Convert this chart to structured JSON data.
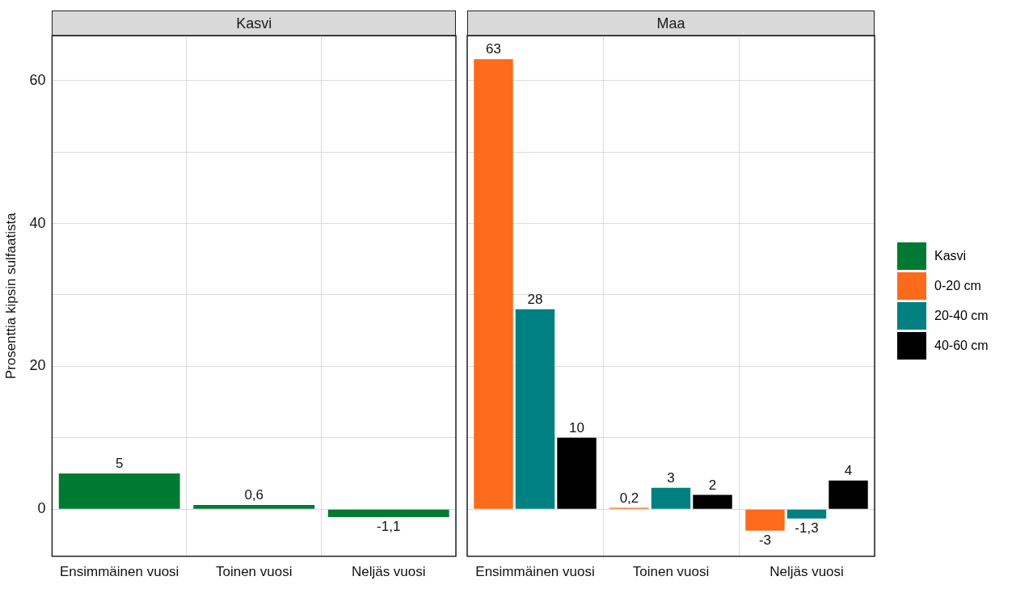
{
  "chart_data": [
    {
      "type": "bar",
      "title": "Kasvi",
      "ylabel": "Prosenttia kipsin sulfaatista",
      "categories": [
        "Ensimmäinen vuosi",
        "Toinen vuosi",
        "Neljäs vuosi"
      ],
      "series": [
        {
          "name": "Kasvi",
          "color": "#007a33",
          "values": [
            5,
            0.6,
            -1.1
          ],
          "value_labels": [
            "5",
            "0,6",
            "-1,1"
          ]
        }
      ],
      "ylim": [
        -6.6,
        66.3
      ],
      "yticks": [
        0,
        {
          "value": 10,
          "label": null
        },
        20,
        {
          "value": 30,
          "label": null
        },
        40,
        {
          "value": 50,
          "label": null
        },
        60
      ],
      "grid": true,
      "legend": "right"
    },
    {
      "type": "bar",
      "title": "Maa",
      "categories": [
        "Ensimmäinen vuosi",
        "Toinen vuosi",
        "Neljäs vuosi"
      ],
      "series": [
        {
          "name": "0-20 cm",
          "color": "#fc6a1c",
          "values": [
            63,
            0.2,
            -3
          ],
          "value_labels": [
            "63",
            "0,2",
            "-3"
          ]
        },
        {
          "name": "20-40 cm",
          "color": "#008080",
          "values": [
            28,
            3,
            -1.3
          ],
          "value_labels": [
            "28",
            "3",
            "-1,3"
          ]
        },
        {
          "name": "40-60 cm",
          "color": "#000000",
          "values": [
            10,
            2,
            4
          ],
          "value_labels": [
            "10",
            "2",
            "4"
          ]
        }
      ],
      "ylim": [
        -6.6,
        66.3
      ],
      "yticks": [
        0,
        {
          "value": 10,
          "label": null
        },
        20,
        {
          "value": 30,
          "label": null
        },
        40,
        {
          "value": 50,
          "label": null
        },
        60
      ],
      "grid": true,
      "legend": "right",
      "tick_labels": "x"
    }
  ]
}
